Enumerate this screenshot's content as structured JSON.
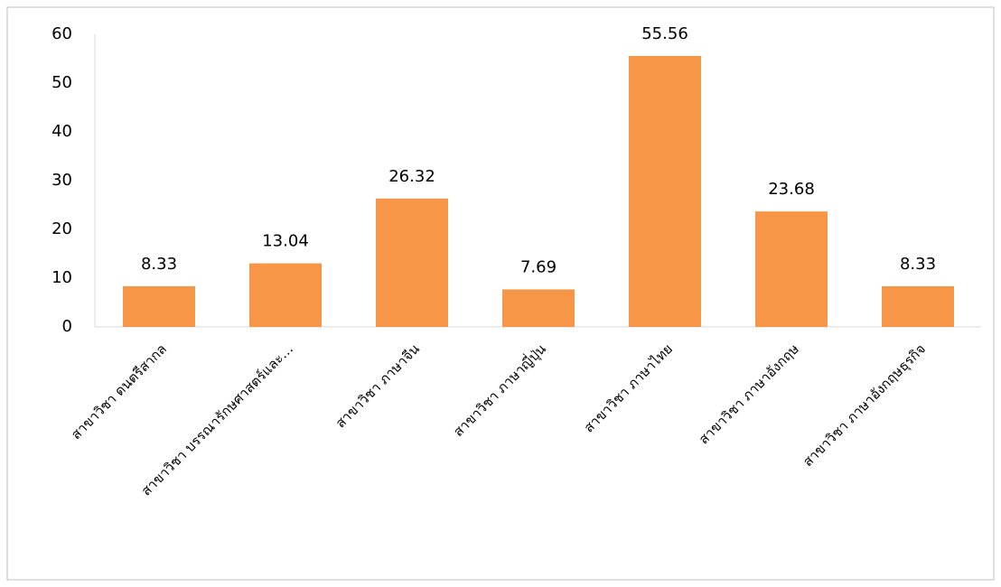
{
  "chart_data": {
    "type": "bar",
    "categories": [
      "สาขาวิชา ดนตรีสากล",
      "สาขาวิชา บรรณารักษศาสตร์และ…",
      "สาขาวิชา ภาษาจีน",
      "สาขาวิชา ภาษาญี่ปุ่น",
      "สาขาวิชา ภาษาไทย",
      "สาขาวิชา ภาษาอังกฤษ",
      "สาขาวิชา ภาษาอังกฤษธุรกิจ"
    ],
    "values": [
      8.33,
      13.04,
      26.32,
      7.69,
      55.56,
      23.68,
      8.33
    ],
    "color": "#f79646",
    "ylim": [
      0,
      60
    ],
    "yticks": [
      0,
      10,
      20,
      30,
      40,
      50,
      60
    ],
    "grid": false
  }
}
